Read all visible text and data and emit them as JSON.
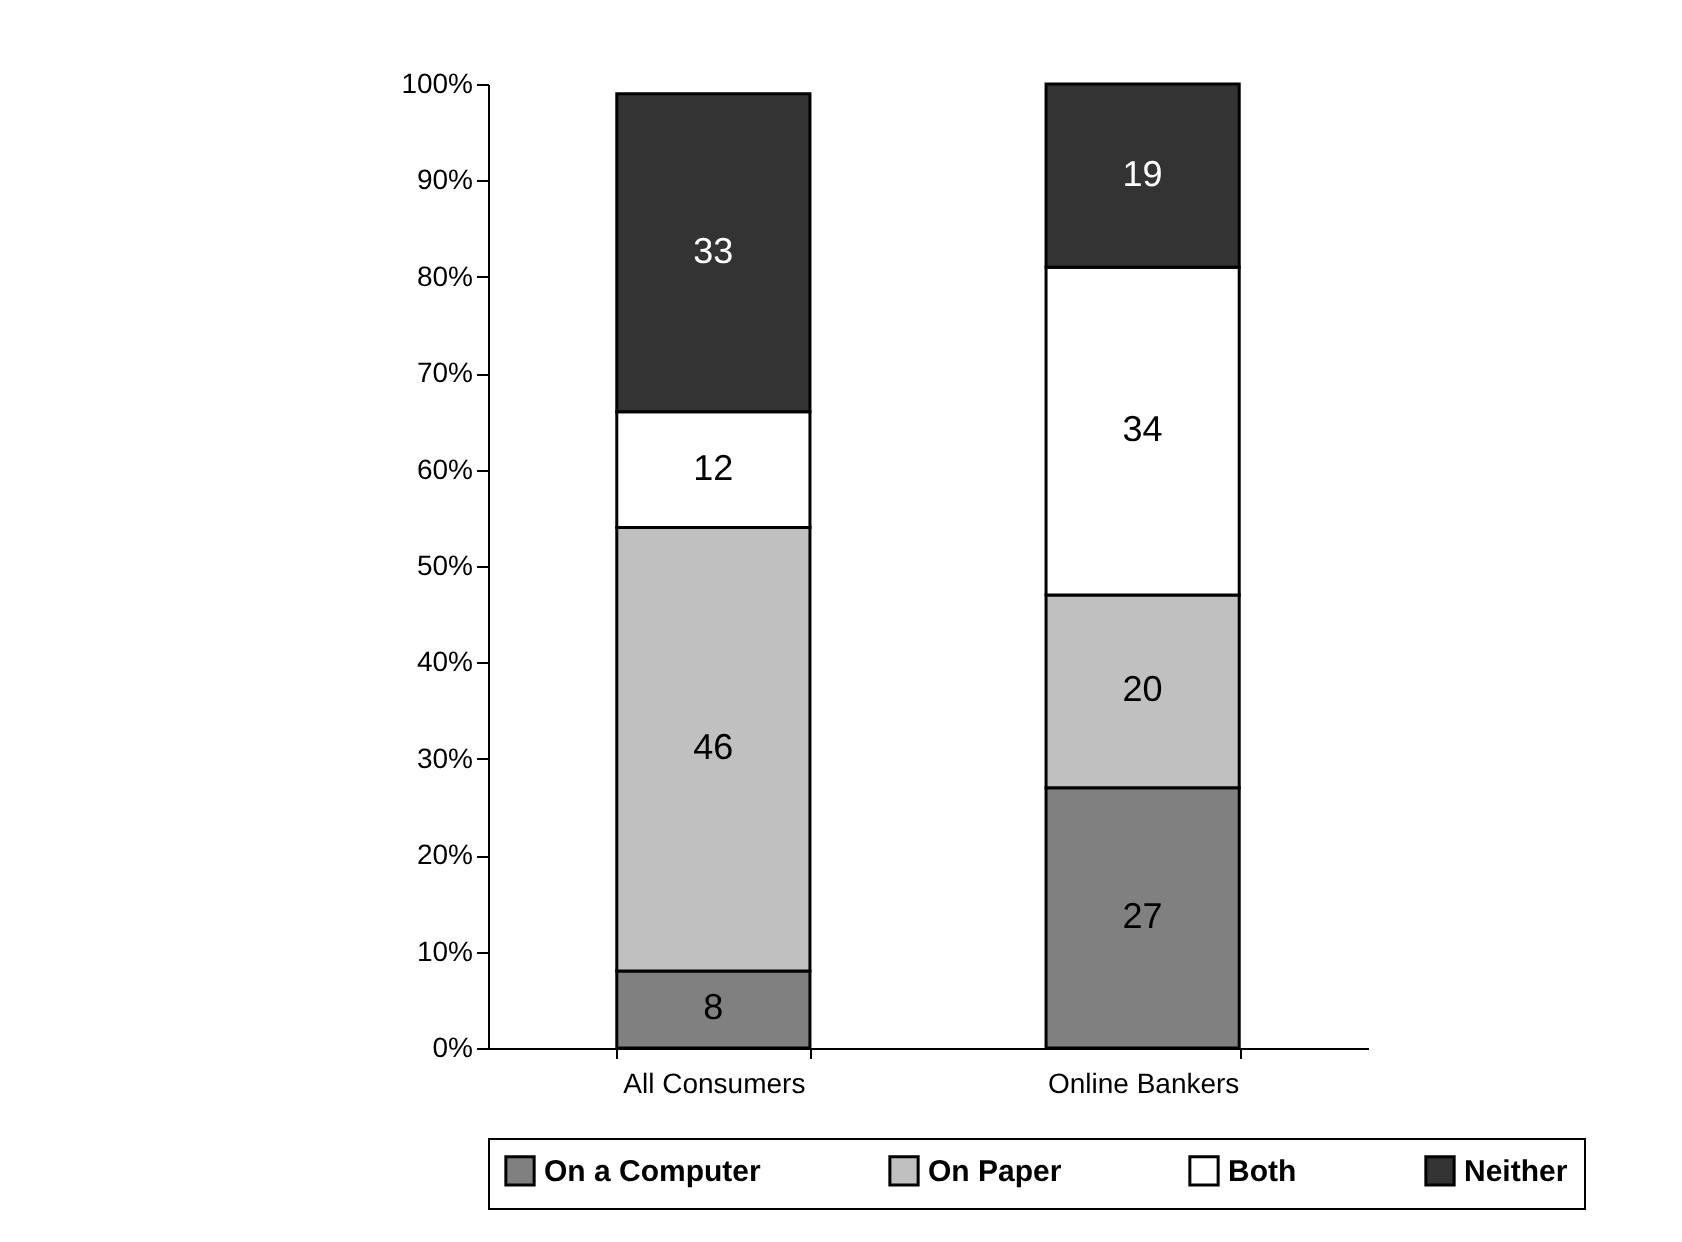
{
  "chart_data": {
    "type": "bar",
    "stacked": true,
    "categories": [
      "All Consumers",
      "Online Bankers"
    ],
    "series": [
      {
        "name": "On a Computer",
        "color": "#808080",
        "values": [
          8,
          27
        ]
      },
      {
        "name": "On Paper",
        "color": "#c0c0c0",
        "values": [
          46,
          20
        ]
      },
      {
        "name": "Both",
        "color": "#ffffff",
        "values": [
          12,
          34
        ]
      },
      {
        "name": "Neither",
        "color": "#333333",
        "values": [
          33,
          19
        ]
      }
    ],
    "ylim": [
      0,
      100
    ],
    "yticks": [
      {
        "value": 0,
        "label": "0%"
      },
      {
        "value": 10,
        "label": "10%"
      },
      {
        "value": 20,
        "label": "20%"
      },
      {
        "value": 30,
        "label": "30%"
      },
      {
        "value": 40,
        "label": "40%"
      },
      {
        "value": 50,
        "label": "50%"
      },
      {
        "value": 60,
        "label": "60%"
      },
      {
        "value": 70,
        "label": "70%"
      },
      {
        "value": 80,
        "label": "80%"
      },
      {
        "value": 90,
        "label": "90%"
      },
      {
        "value": 100,
        "label": "100%"
      }
    ],
    "data_labels": true,
    "grid": false,
    "legend": "bottom"
  }
}
